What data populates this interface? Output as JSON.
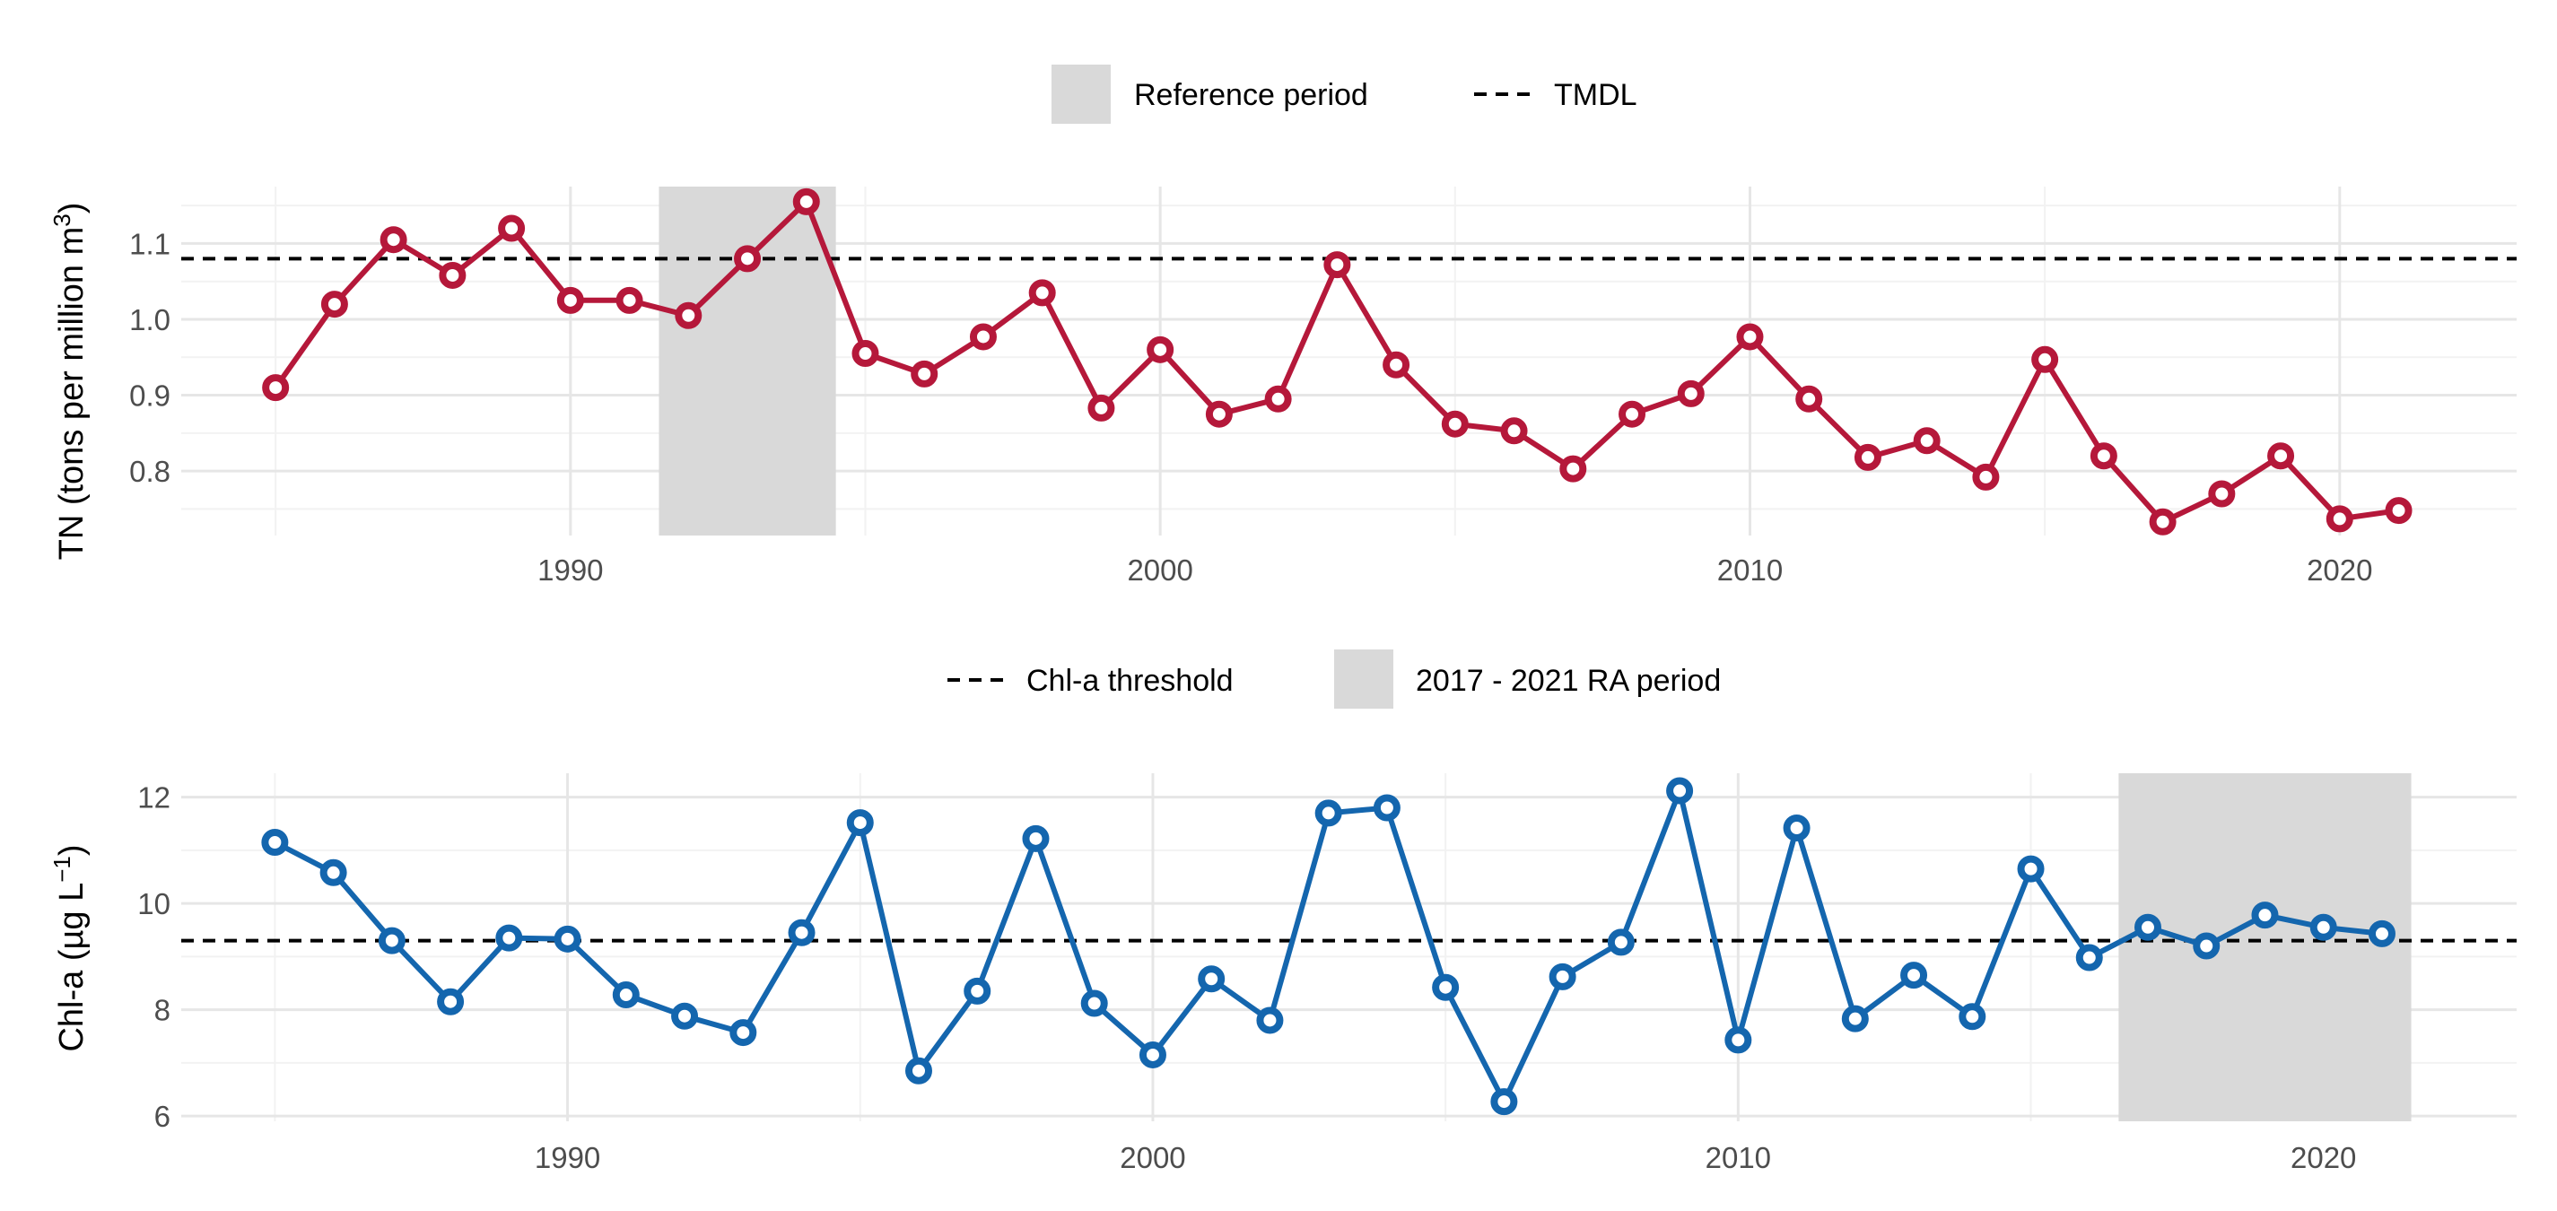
{
  "chart_data": [
    {
      "type": "line",
      "panel": "top",
      "ylabel_main": "TN (tons per million m",
      "ylabel_sup": "3",
      "ylabel_tail": ")",
      "xlim": [
        1983.4,
        2023.0
      ],
      "ylim": [
        0.715,
        1.175
      ],
      "x_ticks": [
        1990,
        2000,
        2010,
        2020
      ],
      "y_ticks": [
        0.8,
        0.9,
        1.0,
        1.1
      ],
      "y_tick_labels": [
        "0.8",
        "0.9",
        "1.0",
        "1.1"
      ],
      "grid": true,
      "legend_position": "top",
      "legend": [
        {
          "kind": "rect",
          "label": "Reference period"
        },
        {
          "kind": "dash",
          "label": "TMDL"
        }
      ],
      "shaded_period": {
        "label": "Reference period",
        "x_start": 1991.5,
        "x_end": 1994.5
      },
      "threshold": {
        "label": "TMDL",
        "value": 1.08
      },
      "colors": {
        "series": "#b5183a",
        "threshold": "#000000",
        "shade": "#d9d9d9"
      },
      "series": [
        {
          "x": [
            1985,
            1986,
            1987,
            1988,
            1989,
            1990,
            1991,
            1992,
            1993,
            1994,
            1995,
            1996,
            1997,
            1998,
            1999,
            2000,
            2001,
            2002,
            2003,
            2004,
            2005,
            2006,
            2007,
            2008,
            2009,
            2010,
            2011,
            2012,
            2013,
            2014,
            2015,
            2016,
            2017,
            2018,
            2019,
            2020,
            2021
          ],
          "values": [
            0.91,
            1.02,
            1.105,
            1.058,
            1.12,
            1.025,
            1.025,
            1.005,
            1.08,
            1.155,
            0.955,
            0.928,
            0.977,
            1.035,
            0.883,
            0.96,
            0.875,
            0.895,
            1.072,
            0.94,
            0.862,
            0.853,
            0.803,
            0.875,
            0.902,
            0.977,
            0.895,
            0.818,
            0.84,
            0.792,
            0.947,
            0.82,
            0.733,
            0.77,
            0.82,
            0.737,
            0.748
          ]
        }
      ]
    },
    {
      "type": "line",
      "panel": "bottom",
      "ylabel_main": "Chl-a (µg L",
      "ylabel_sup": "−1",
      "ylabel_tail": ")",
      "xlim": [
        1983.4,
        2023.3
      ],
      "ylim": [
        5.9,
        12.45
      ],
      "x_ticks": [
        1990,
        2000,
        2010,
        2020
      ],
      "y_ticks": [
        6,
        8,
        10,
        12
      ],
      "y_tick_labels": [
        "6",
        "8",
        "10",
        "12"
      ],
      "grid": true,
      "legend_position": "top",
      "legend": [
        {
          "kind": "dash",
          "label": "Chl-a threshold"
        },
        {
          "kind": "rect",
          "label": "2017 - 2021 RA period"
        }
      ],
      "shaded_period": {
        "label": "2017 - 2021 RA period",
        "x_start": 2016.5,
        "x_end": 2021.5
      },
      "threshold": {
        "label": "Chl-a threshold",
        "value": 9.3
      },
      "colors": {
        "series": "#1466ae",
        "threshold": "#000000",
        "shade": "#d9d9d9"
      },
      "series": [
        {
          "x": [
            1985,
            1986,
            1987,
            1988,
            1989,
            1990,
            1991,
            1992,
            1993,
            1994,
            1995,
            1996,
            1997,
            1998,
            1999,
            2000,
            2001,
            2002,
            2003,
            2004,
            2005,
            2006,
            2007,
            2008,
            2009,
            2010,
            2011,
            2012,
            2013,
            2014,
            2015,
            2016,
            2017,
            2018,
            2019,
            2020,
            2021
          ],
          "values": [
            11.15,
            10.58,
            9.3,
            8.15,
            9.35,
            9.33,
            8.28,
            7.88,
            7.57,
            9.45,
            11.52,
            6.85,
            8.35,
            11.22,
            8.12,
            7.15,
            8.58,
            7.8,
            11.7,
            11.8,
            8.42,
            6.27,
            8.62,
            9.27,
            12.12,
            7.43,
            11.42,
            7.83,
            8.65,
            7.87,
            10.65,
            8.98,
            9.55,
            9.2,
            9.78,
            9.55,
            9.43
          ]
        }
      ]
    }
  ]
}
